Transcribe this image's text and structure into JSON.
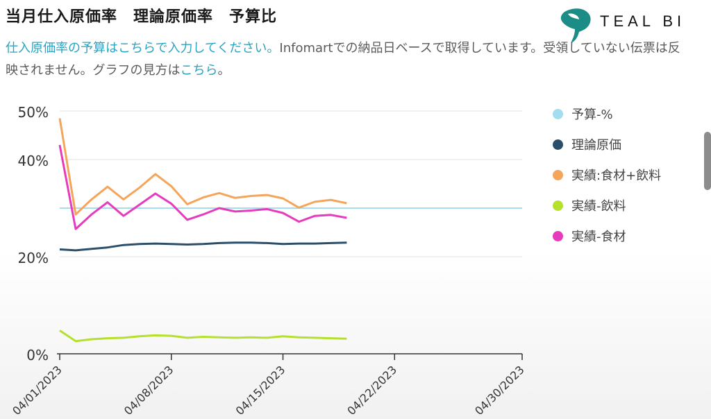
{
  "header": {
    "title": "当月仕入原価率　理論原価率　予算比",
    "subtitle_link1": "仕入原価率の予算はこちらで入力してください。",
    "subtitle_text": "Infomartでの納品日ベースで取得しています。受領していない伝票は反映されません。グラフの見方は",
    "subtitle_link2": "こちら",
    "subtitle_end": "。"
  },
  "logo": {
    "text": "TEAL BI",
    "icon": "teal-swirl-logo"
  },
  "colors": {
    "link": "#2aa3c0",
    "logo_teal": "#1b8d86"
  },
  "chart_data": {
    "type": "line",
    "ylim": [
      0,
      50
    ],
    "y_ticks": [
      0,
      20,
      40,
      50
    ],
    "y_tick_labels": [
      "0%",
      "20%",
      "40%",
      "50%"
    ],
    "x_ticks": [
      "04/01/2023",
      "04/08/2023",
      "04/15/2023",
      "04/22/2023",
      "04/30/2023"
    ],
    "x_range": [
      "2023-04-01",
      "2023-04-30"
    ],
    "grid": true,
    "legend_position": "right",
    "dates": [
      "2023-04-01",
      "2023-04-02",
      "2023-04-03",
      "2023-04-04",
      "2023-04-05",
      "2023-04-06",
      "2023-04-07",
      "2023-04-08",
      "2023-04-09",
      "2023-04-10",
      "2023-04-11",
      "2023-04-12",
      "2023-04-13",
      "2023-04-14",
      "2023-04-15",
      "2023-04-16",
      "2023-04-17",
      "2023-04-18",
      "2023-04-19"
    ],
    "series": [
      {
        "name": "予算-%",
        "color": "#a4dcf0",
        "constant": 30.0
      },
      {
        "name": "理論原価",
        "color": "#2b4f6b",
        "values": [
          21.5,
          21.3,
          21.6,
          21.9,
          22.4,
          22.6,
          22.7,
          22.6,
          22.5,
          22.6,
          22.8,
          22.9,
          22.9,
          22.8,
          22.6,
          22.7,
          22.7,
          22.8,
          22.9
        ]
      },
      {
        "name": "実績:食材+飲料",
        "color": "#f5a55a",
        "values": [
          48.5,
          28.7,
          31.8,
          34.4,
          31.8,
          34.2,
          37.0,
          34.5,
          30.8,
          32.2,
          33.1,
          32.1,
          32.5,
          32.7,
          32.0,
          30.1,
          31.3,
          31.7,
          31.0
        ]
      },
      {
        "name": "実績-飲料",
        "color": "#b5e02c",
        "values": [
          4.8,
          2.6,
          3.0,
          3.2,
          3.3,
          3.6,
          3.8,
          3.7,
          3.3,
          3.5,
          3.4,
          3.3,
          3.4,
          3.3,
          3.6,
          3.4,
          3.3,
          3.2,
          3.1
        ]
      },
      {
        "name": "実績-食材",
        "color": "#e63bbd",
        "values": [
          43.0,
          25.7,
          28.7,
          31.2,
          28.4,
          30.7,
          33.0,
          30.9,
          27.6,
          28.7,
          30.0,
          29.3,
          29.5,
          29.8,
          29.0,
          27.2,
          28.4,
          28.6,
          28.0
        ]
      }
    ]
  }
}
